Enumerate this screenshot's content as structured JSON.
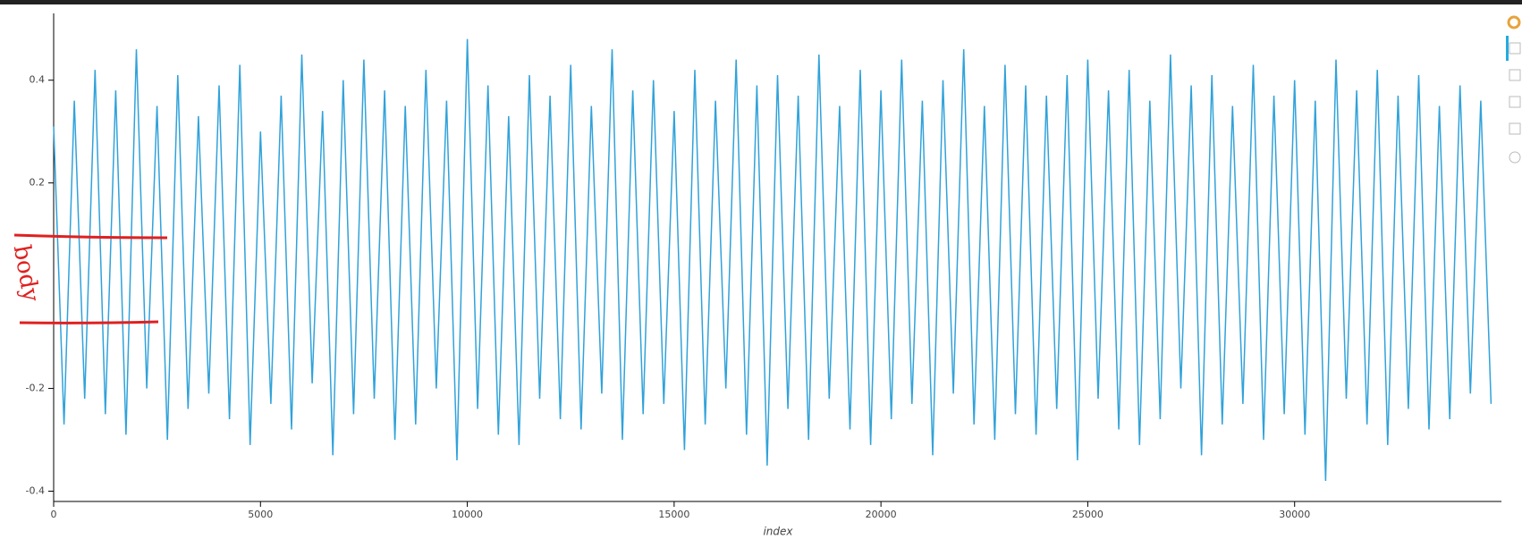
{
  "chart_data": {
    "type": "line",
    "x_label": "index",
    "annotation": "body",
    "color": "#30a2da",
    "x": [
      0,
      250,
      500,
      750,
      1000,
      1250,
      1500,
      1750,
      2000,
      2250,
      2500,
      2750,
      3000,
      3250,
      3500,
      3750,
      4000,
      4250,
      4500,
      4750,
      5000,
      5250,
      5500,
      5750,
      6000,
      6250,
      6500,
      6750,
      7000,
      7250,
      7500,
      7750,
      8000,
      8250,
      8500,
      8750,
      9000,
      9250,
      9500,
      9750,
      10000,
      10250,
      10500,
      10750,
      11000,
      11250,
      11500,
      11750,
      12000,
      12250,
      12500,
      12750,
      13000,
      13250,
      13500,
      13750,
      14000,
      14250,
      14500,
      14750,
      15000,
      15250,
      15500,
      15750,
      16000,
      16250,
      16500,
      16750,
      17000,
      17250,
      17500,
      17750,
      18000,
      18250,
      18500,
      18750,
      19000,
      19250,
      19500,
      19750,
      20000,
      20250,
      20500,
      20750,
      21000,
      21250,
      21500,
      21750,
      22000,
      22250,
      22500,
      22750,
      23000,
      23250,
      23500,
      23750,
      24000,
      24250,
      24500,
      24750,
      25000,
      25250,
      25500,
      25750,
      26000,
      26250,
      26500,
      26750,
      27000,
      27250,
      27500,
      27750,
      28000,
      28250,
      28500,
      28750,
      29000,
      29250,
      29500,
      29750,
      30000,
      30250,
      30500,
      30750,
      31000,
      31250,
      31500,
      31750,
      32000,
      32250,
      32500,
      32750,
      33000,
      33250,
      33500,
      33750,
      34000,
      34250,
      34500,
      34750
    ],
    "values": [
      0.31,
      -0.27,
      0.36,
      -0.22,
      0.42,
      -0.25,
      0.38,
      -0.29,
      0.46,
      -0.2,
      0.35,
      -0.3,
      0.41,
      -0.24,
      0.33,
      -0.21,
      0.39,
      -0.26,
      0.43,
      -0.31,
      0.3,
      -0.23,
      0.37,
      -0.28,
      0.45,
      -0.19,
      0.34,
      -0.33,
      0.4,
      -0.25,
      0.44,
      -0.22,
      0.38,
      -0.3,
      0.35,
      -0.27,
      0.42,
      -0.2,
      0.36,
      -0.34,
      0.48,
      -0.24,
      0.39,
      -0.29,
      0.33,
      -0.31,
      0.41,
      -0.22,
      0.37,
      -0.26,
      0.43,
      -0.28,
      0.35,
      -0.21,
      0.46,
      -0.3,
      0.38,
      -0.25,
      0.4,
      -0.23,
      0.34,
      -0.32,
      0.42,
      -0.27,
      0.36,
      -0.2,
      0.44,
      -0.29,
      0.39,
      -0.35,
      0.41,
      -0.24,
      0.37,
      -0.3,
      0.45,
      -0.22,
      0.35,
      -0.28,
      0.42,
      -0.31,
      0.38,
      -0.26,
      0.44,
      -0.23,
      0.36,
      -0.33,
      0.4,
      -0.21,
      0.46,
      -0.27,
      0.35,
      -0.3,
      0.43,
      -0.25,
      0.39,
      -0.29,
      0.37,
      -0.24,
      0.41,
      -0.34,
      0.44,
      -0.22,
      0.38,
      -0.28,
      0.42,
      -0.31,
      0.36,
      -0.26,
      0.45,
      -0.2,
      0.39,
      -0.33,
      0.41,
      -0.27,
      0.35,
      -0.23,
      0.43,
      -0.3,
      0.37,
      -0.25,
      0.4,
      -0.29,
      0.36,
      -0.38,
      0.44,
      -0.22,
      0.38,
      -0.27,
      0.42,
      -0.31,
      0.37,
      -0.24,
      0.41,
      -0.28,
      0.35,
      -0.26,
      0.39,
      -0.21,
      0.36,
      -0.23
    ],
    "xlim": [
      0,
      35000
    ],
    "ylim": [
      -0.42,
      0.53
    ],
    "xticks": [
      0,
      5000,
      10000,
      15000,
      20000,
      25000,
      30000
    ],
    "yticks": [
      -0.4,
      -0.2,
      0.2,
      0.4
    ]
  }
}
